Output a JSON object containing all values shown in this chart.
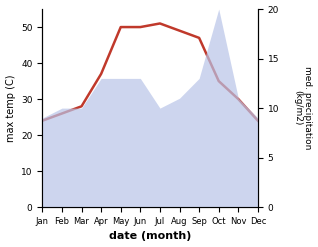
{
  "months": [
    "Jan",
    "Feb",
    "Mar",
    "Apr",
    "May",
    "Jun",
    "Jul",
    "Aug",
    "Sep",
    "Oct",
    "Nov",
    "Dec"
  ],
  "temp": [
    24,
    26,
    28,
    37,
    50,
    50,
    51,
    49,
    47,
    35,
    30,
    24
  ],
  "precip": [
    9,
    10,
    10,
    13,
    13,
    13,
    10,
    11,
    13,
    20,
    11,
    9
  ],
  "temp_color": "#c0392b",
  "precip_fill_color": "#b8c4e8",
  "ylabel_left": "max temp (C)",
  "ylabel_right": "med. precipitation\n(kg/m2)",
  "xlabel": "date (month)",
  "ylim_left": [
    0,
    55
  ],
  "ylim_right": [
    0,
    20
  ],
  "yticks_left": [
    0,
    10,
    20,
    30,
    40,
    50
  ],
  "yticks_right": [
    0,
    5,
    10,
    15,
    20
  ],
  "figsize": [
    3.18,
    2.47
  ],
  "dpi": 100
}
